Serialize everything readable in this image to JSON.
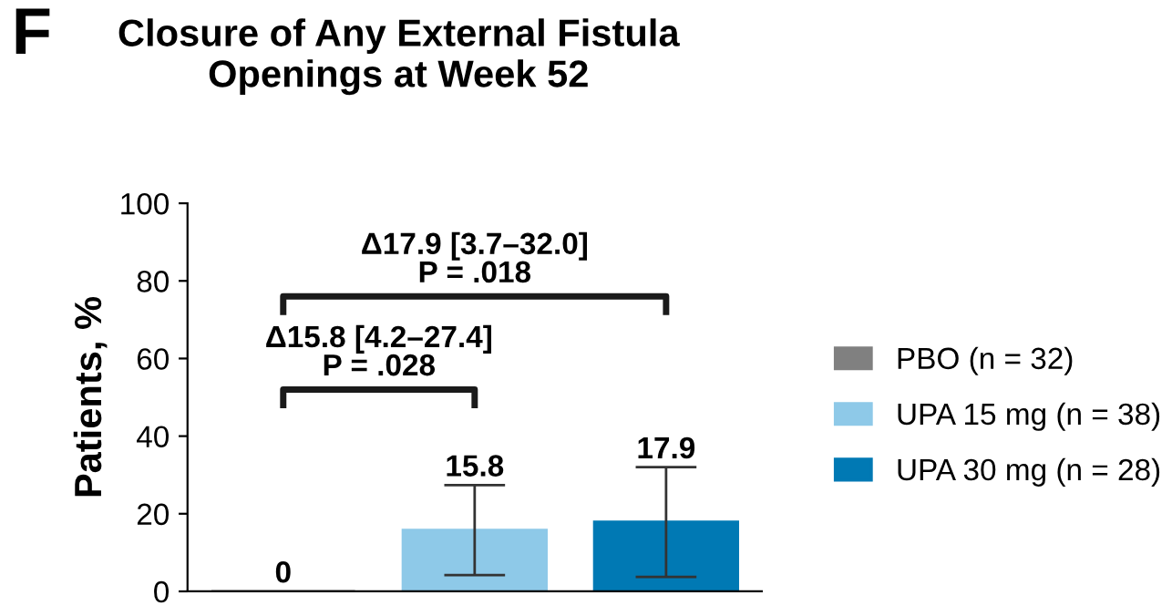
{
  "chart_data": {
    "type": "bar",
    "title": "Closure of Any External Fistula\nOpenings at Week 52",
    "ylabel": "Patients, %",
    "categories": [
      null,
      null,
      null
    ],
    "series": [
      {
        "name": "PBO (n = 32)",
        "color": "#808080",
        "values": [
          0,
          null,
          null
        ]
      },
      {
        "name": "UPA 15 mg (n = 38)",
        "color": "#8ec9e8",
        "values": [
          null,
          15.8,
          null
        ],
        "errors": [
          null,
          [
            4.2,
            27.4
          ],
          null
        ]
      },
      {
        "name": "UPA 30 mg (n = 28)",
        "color": "#0079b4",
        "values": [
          null,
          null,
          17.9
        ],
        "errors": [
          null,
          null,
          [
            3.7,
            32.0
          ]
        ]
      }
    ],
    "ylim": [
      0,
      100
    ],
    "yticks": [
      0,
      20,
      40,
      60,
      80,
      100
    ],
    "grid": false,
    "legend": "right",
    "data_labels": true,
    "annotations": [
      "F",
      "Δ15.8 [4.2–27.4]\nP = .028",
      "Δ17.9 [3.7–32.0]\nP = .018"
    ]
  }
}
